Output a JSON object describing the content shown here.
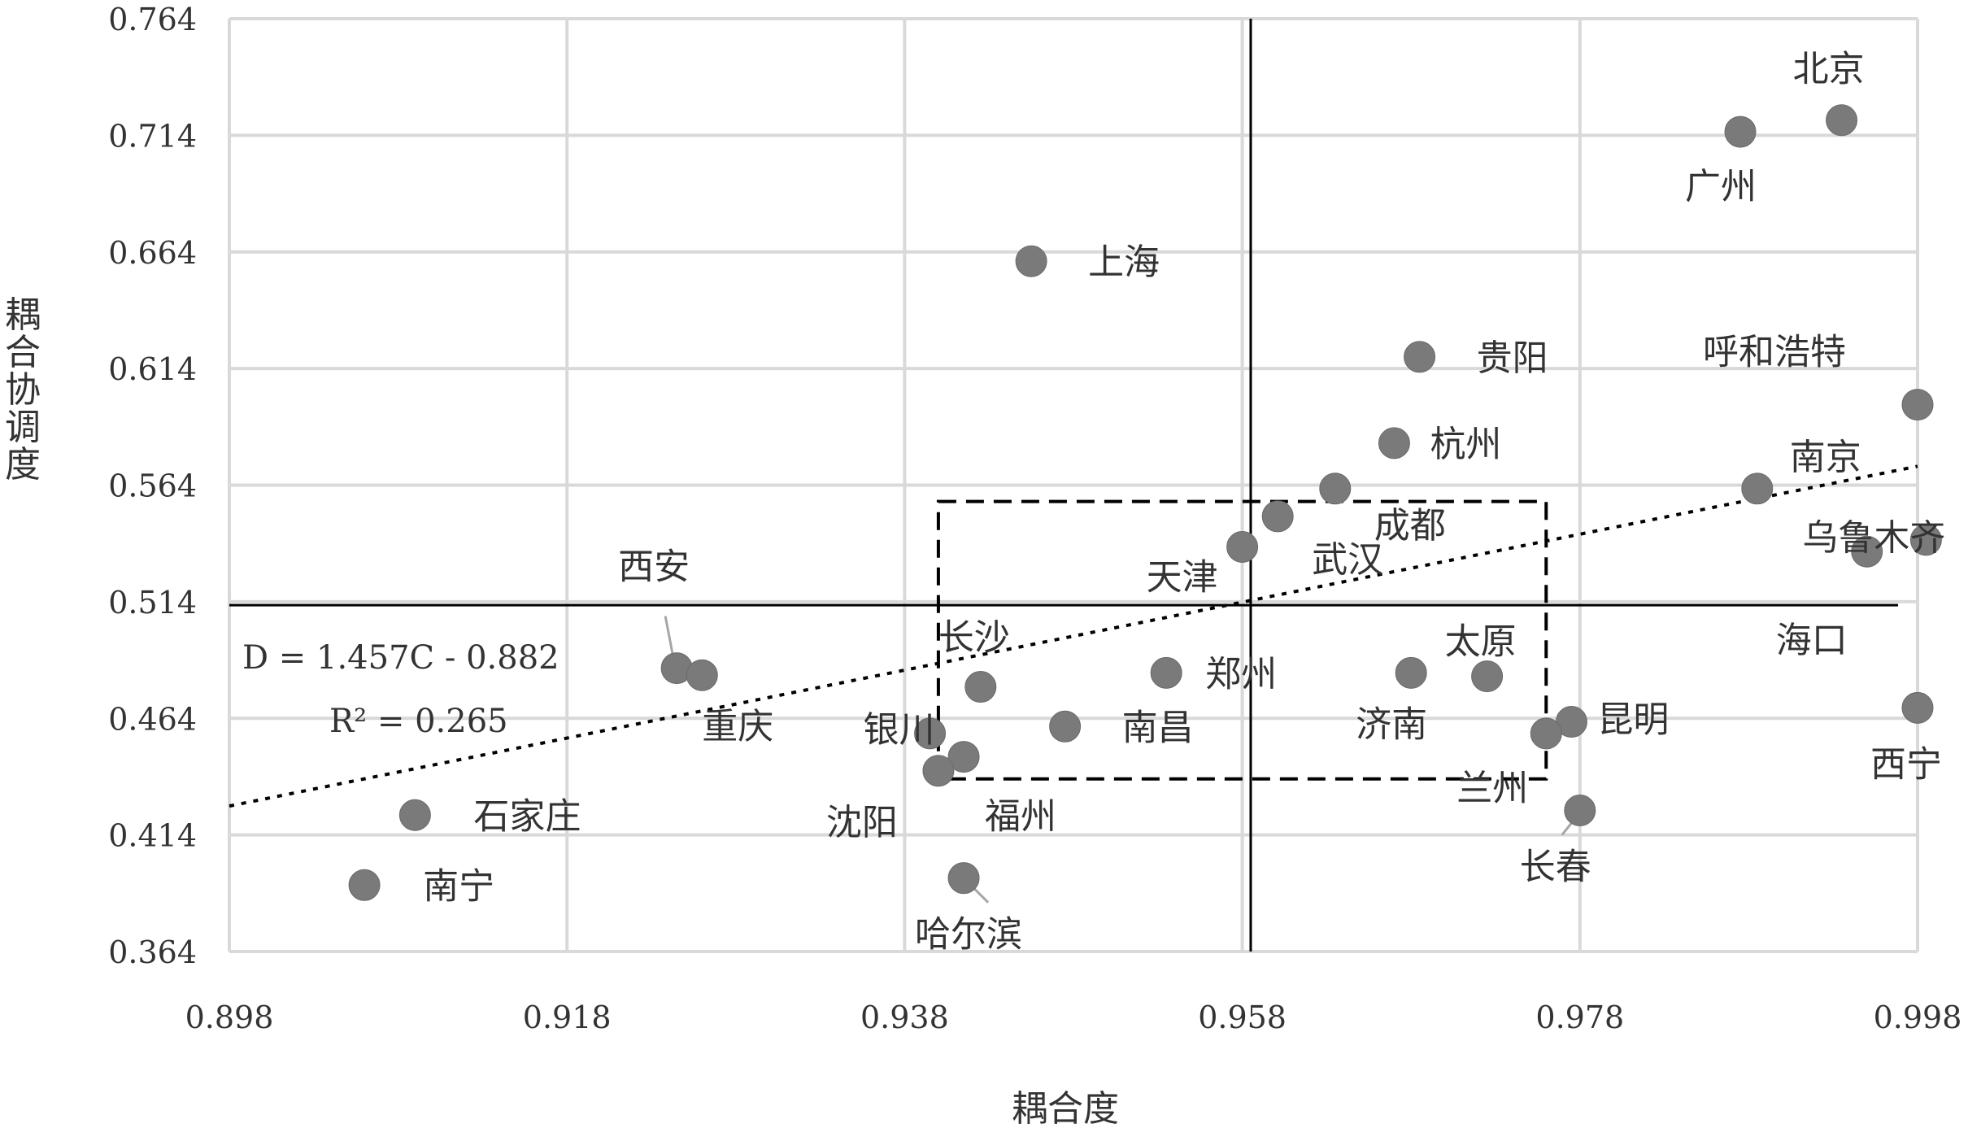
{
  "chart_data": {
    "type": "scatter",
    "title": "",
    "xlabel": "耦合度",
    "ylabel": "耦合协调度",
    "xlim": [
      0.898,
      0.998
    ],
    "ylim": [
      0.364,
      0.764
    ],
    "xticks": [
      "0.898",
      "0.918",
      "0.938",
      "0.958",
      "0.978",
      "0.998"
    ],
    "yticks": [
      "0.364",
      "0.414",
      "0.464",
      "0.514",
      "0.564",
      "0.614",
      "0.664",
      "0.714",
      "0.764"
    ],
    "grid": true,
    "reference_lines": {
      "x": 0.9585,
      "y": 0.5125
    },
    "highlight_box": {
      "x": [
        0.94,
        0.976
      ],
      "y": [
        0.438,
        0.557
      ]
    },
    "trendline": {
      "slope": 1.457,
      "intercept": -0.882,
      "equation": "D = 1.457C - 0.882",
      "r2": "R² = 0.265"
    },
    "points": [
      {
        "name": "北京",
        "x": 0.9935,
        "y": 0.7205
      },
      {
        "name": "广州",
        "x": 0.9875,
        "y": 0.7155
      },
      {
        "name": "上海",
        "x": 0.9455,
        "y": 0.66
      },
      {
        "name": "贵阳",
        "x": 0.9685,
        "y": 0.619
      },
      {
        "name": "呼和浩特",
        "x": 0.998,
        "y": 0.5985
      },
      {
        "name": "杭州",
        "x": 0.967,
        "y": 0.582
      },
      {
        "name": "南京",
        "x": 0.9885,
        "y": 0.5625
      },
      {
        "name": "成都",
        "x": 0.9635,
        "y": 0.5625
      },
      {
        "name": "武汉",
        "x": 0.9601,
        "y": 0.5506
      },
      {
        "name": "天津",
        "x": 0.958,
        "y": 0.5375
      },
      {
        "name": "乌鲁木齐",
        "x": 0.9985,
        "y": 0.5405
      },
      {
        "name": "海口",
        "x": 0.995,
        "y": 0.5355
      },
      {
        "name": "西安",
        "x": 0.9245,
        "y": 0.4855
      },
      {
        "name": "重庆",
        "x": 0.926,
        "y": 0.4825
      },
      {
        "name": "郑州",
        "x": 0.9535,
        "y": 0.4835
      },
      {
        "name": "济南",
        "x": 0.968,
        "y": 0.4835
      },
      {
        "name": "太原",
        "x": 0.9725,
        "y": 0.482
      },
      {
        "name": "长沙",
        "x": 0.9425,
        "y": 0.4775
      },
      {
        "name": "西宁",
        "x": 0.998,
        "y": 0.4685
      },
      {
        "name": "昆明",
        "x": 0.9775,
        "y": 0.4625
      },
      {
        "name": "南昌",
        "x": 0.9475,
        "y": 0.4605
      },
      {
        "name": "兰州",
        "x": 0.976,
        "y": 0.4575
      },
      {
        "name": "银川",
        "x": 0.9395,
        "y": 0.4575
      },
      {
        "name": "福州",
        "x": 0.9415,
        "y": 0.4475
      },
      {
        "name": "沈阳",
        "x": 0.94,
        "y": 0.4415
      },
      {
        "name": "长春",
        "x": 0.978,
        "y": 0.4245
      },
      {
        "name": "石家庄",
        "x": 0.909,
        "y": 0.4225
      },
      {
        "name": "哈尔滨",
        "x": 0.9415,
        "y": 0.3955
      },
      {
        "name": "南宁",
        "x": 0.906,
        "y": 0.3925
      }
    ]
  }
}
